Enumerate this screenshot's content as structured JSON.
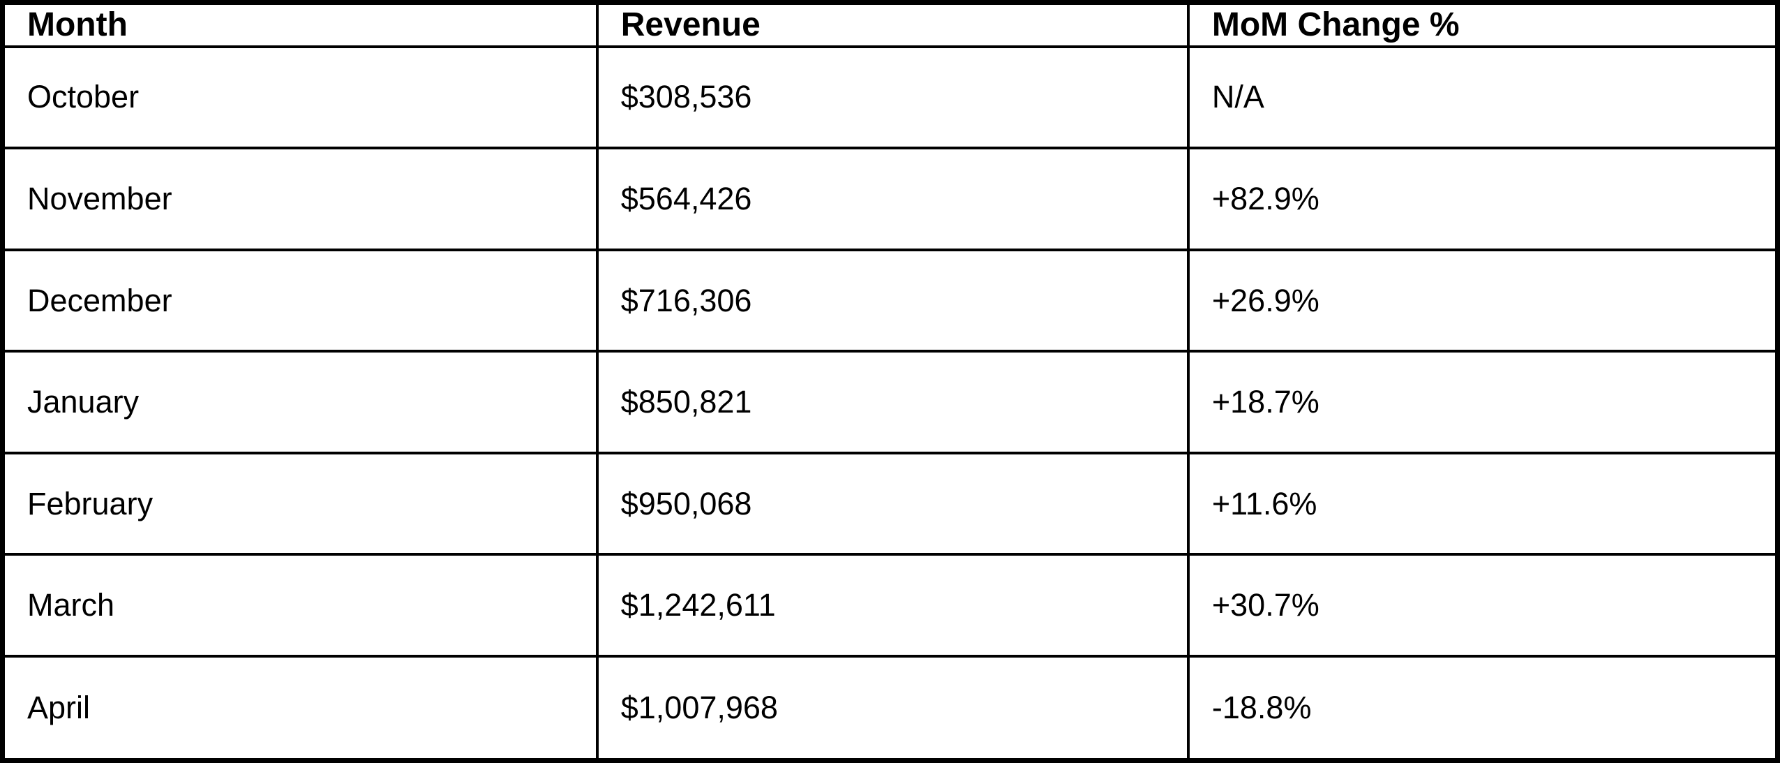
{
  "table": {
    "columns": [
      "Month",
      "Revenue",
      "MoM Change %"
    ],
    "rows": [
      {
        "month": "October",
        "revenue": "$308,536",
        "mom_change": "N/A"
      },
      {
        "month": "November",
        "revenue": "$564,426",
        "mom_change": "+82.9%"
      },
      {
        "month": "December",
        "revenue": "$716,306",
        "mom_change": "+26.9%"
      },
      {
        "month": "January",
        "revenue": "$850,821",
        "mom_change": "+18.7%"
      },
      {
        "month": "February",
        "revenue": "$950,068",
        "mom_change": "+11.6%"
      },
      {
        "month": "March",
        "revenue": "$1,242,611",
        "mom_change": "+30.7%"
      },
      {
        "month": "April",
        "revenue": "$1,007,968",
        "mom_change": "-18.8%"
      }
    ],
    "border_color": "#000000",
    "background_color": "#ffffff",
    "text_color": "#000000"
  },
  "chart_data": {
    "type": "table",
    "title": "",
    "columns": [
      "Month",
      "Revenue",
      "MoM Change %"
    ],
    "categories": [
      "October",
      "November",
      "December",
      "January",
      "February",
      "March",
      "April"
    ],
    "series": [
      {
        "name": "Revenue",
        "values": [
          308536,
          564426,
          716306,
          850821,
          950068,
          1242611,
          1007968
        ]
      },
      {
        "name": "MoM Change %",
        "values": [
          null,
          82.9,
          26.9,
          18.7,
          11.6,
          30.7,
          -18.8
        ]
      }
    ],
    "cells": [
      [
        "October",
        "$308,536",
        "N/A"
      ],
      [
        "November",
        "$564,426",
        "+82.9%"
      ],
      [
        "December",
        "$716,306",
        "+26.9%"
      ],
      [
        "January",
        "$850,821",
        "+18.7%"
      ],
      [
        "February",
        "$950,068",
        "+11.6%"
      ],
      [
        "March",
        "$1,242,611",
        "+30.7%"
      ],
      [
        "April",
        "$1,007,968",
        "-18.8%"
      ]
    ],
    "legend_position": "none",
    "grid": true
  }
}
